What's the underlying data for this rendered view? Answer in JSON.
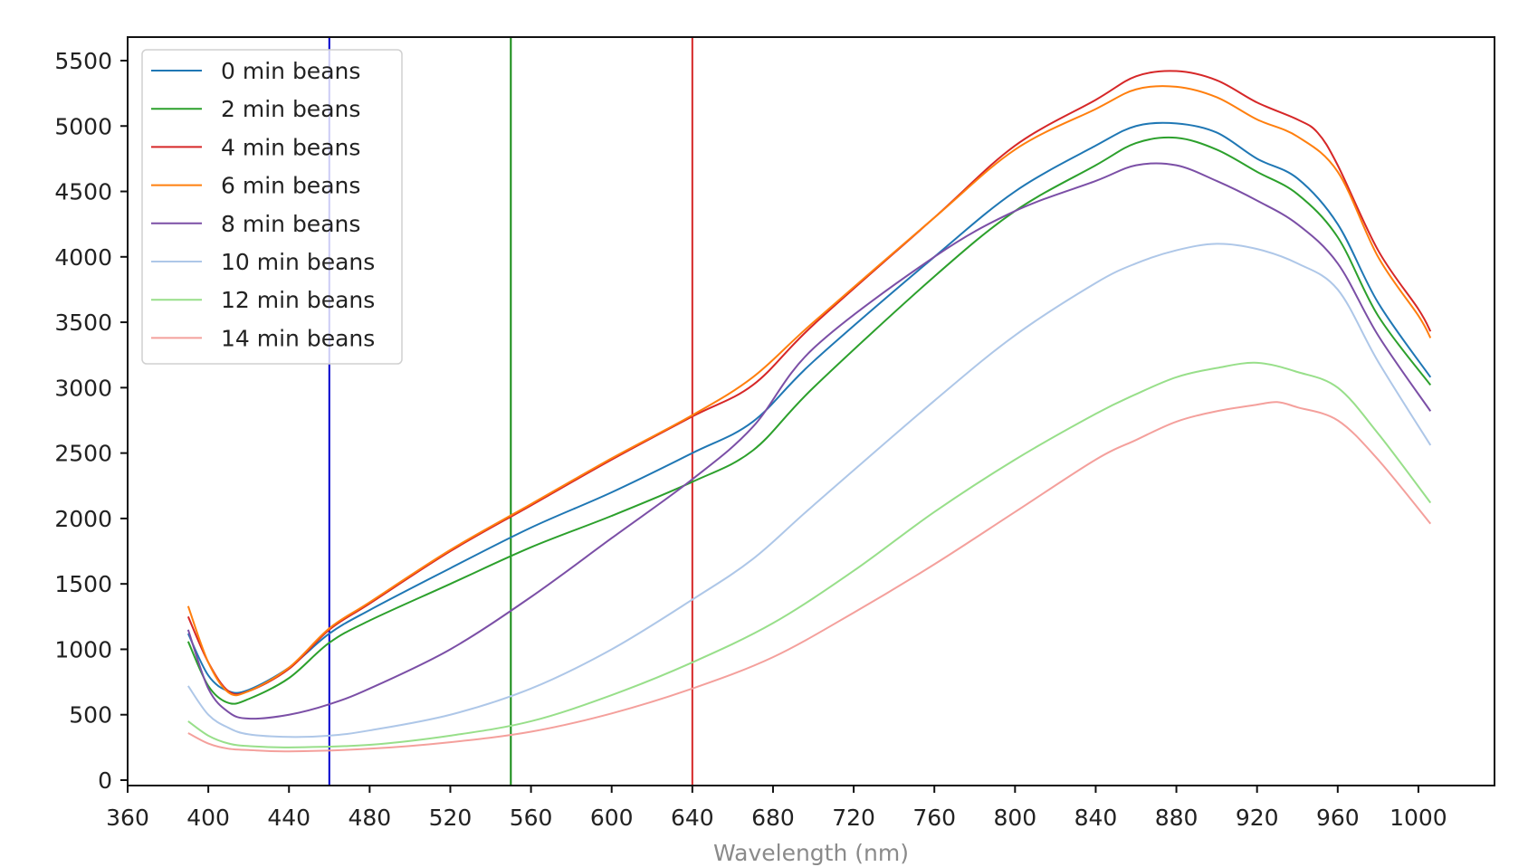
{
  "chart_data": {
    "type": "line",
    "title": "",
    "xlabel": "Wavelength (nm)",
    "ylabel": "",
    "xlim": [
      360,
      1040
    ],
    "ylim": [
      -30,
      5750
    ],
    "xticks": [
      360,
      400,
      440,
      480,
      520,
      560,
      600,
      640,
      680,
      720,
      760,
      800,
      840,
      880,
      920,
      960,
      1000
    ],
    "yticks": [
      0,
      500,
      1000,
      1500,
      2000,
      2500,
      3000,
      3500,
      4000,
      4500,
      5000,
      5500
    ],
    "grid": false,
    "legend_position": "upper left",
    "vertical_lines": [
      {
        "x": 460,
        "color": "#0000cc"
      },
      {
        "x": 550,
        "color": "#138a13"
      },
      {
        "x": 640,
        "color": "#d62728"
      }
    ],
    "series": [
      {
        "name": "0 min beans",
        "color": "#1f77b4",
        "width": 2,
        "x": [
          390,
          400,
          410,
          420,
          440,
          460,
          480,
          520,
          560,
          600,
          640,
          670,
          700,
          760,
          800,
          840,
          860,
          880,
          900,
          920,
          940,
          960,
          980,
          1006
        ],
        "y": [
          1120,
          800,
          680,
          690,
          860,
          1120,
          1300,
          1620,
          1930,
          2200,
          2500,
          2740,
          3200,
          4000,
          4500,
          4850,
          5000,
          5020,
          4950,
          4750,
          4600,
          4250,
          3650,
          3080
        ]
      },
      {
        "name": "2 min beans",
        "color": "#2ca02c",
        "width": 2,
        "x": [
          390,
          400,
          410,
          420,
          440,
          460,
          480,
          520,
          560,
          600,
          640,
          670,
          700,
          760,
          800,
          840,
          860,
          880,
          900,
          920,
          940,
          960,
          980,
          1006
        ],
        "y": [
          1060,
          720,
          590,
          620,
          780,
          1050,
          1220,
          1500,
          1780,
          2020,
          2280,
          2520,
          3000,
          3850,
          4350,
          4700,
          4870,
          4910,
          4820,
          4650,
          4480,
          4150,
          3550,
          3020
        ]
      },
      {
        "name": "4 min beans",
        "color": "#d62728",
        "width": 2,
        "x": [
          390,
          400,
          410,
          420,
          440,
          460,
          480,
          520,
          560,
          600,
          640,
          670,
          700,
          760,
          800,
          840,
          860,
          880,
          900,
          920,
          940,
          950,
          960,
          980,
          1000,
          1006
        ],
        "y": [
          1250,
          900,
          680,
          680,
          850,
          1150,
          1350,
          1750,
          2100,
          2450,
          2780,
          3020,
          3480,
          4300,
          4850,
          5200,
          5380,
          5420,
          5350,
          5180,
          5050,
          4950,
          4700,
          4050,
          3600,
          3430
        ]
      },
      {
        "name": "6 min beans",
        "color": "#ff7f0e",
        "width": 2,
        "x": [
          390,
          400,
          410,
          420,
          440,
          460,
          480,
          520,
          560,
          600,
          640,
          670,
          700,
          760,
          800,
          840,
          860,
          880,
          900,
          920,
          940,
          960,
          980,
          1000,
          1006
        ],
        "y": [
          1330,
          900,
          670,
          680,
          860,
          1160,
          1360,
          1760,
          2110,
          2460,
          2790,
          3080,
          3500,
          4300,
          4820,
          5130,
          5280,
          5300,
          5220,
          5050,
          4920,
          4650,
          4000,
          3550,
          3380
        ]
      },
      {
        "name": "8 min beans",
        "color": "#7b4fa6",
        "width": 2,
        "x": [
          390,
          400,
          410,
          420,
          440,
          460,
          480,
          520,
          560,
          600,
          640,
          670,
          700,
          760,
          800,
          840,
          860,
          880,
          900,
          920,
          940,
          960,
          980,
          1006
        ],
        "y": [
          1150,
          700,
          520,
          470,
          500,
          580,
          700,
          1000,
          1400,
          1850,
          2300,
          2700,
          3300,
          4000,
          4350,
          4580,
          4700,
          4700,
          4580,
          4430,
          4250,
          3950,
          3400,
          2820
        ]
      },
      {
        "name": "10 min beans",
        "color": "#aec7e8",
        "width": 2,
        "x": [
          390,
          400,
          410,
          420,
          440,
          460,
          480,
          520,
          560,
          600,
          640,
          670,
          700,
          760,
          800,
          840,
          860,
          880,
          900,
          920,
          940,
          960,
          980,
          1006
        ],
        "y": [
          720,
          500,
          400,
          350,
          330,
          340,
          380,
          500,
          700,
          1000,
          1380,
          1690,
          2100,
          2900,
          3400,
          3800,
          3950,
          4050,
          4100,
          4060,
          3950,
          3750,
          3200,
          2560
        ]
      },
      {
        "name": "12 min beans",
        "color": "#98df8a",
        "width": 2,
        "x": [
          390,
          400,
          410,
          420,
          440,
          480,
          520,
          560,
          600,
          640,
          680,
          720,
          760,
          800,
          840,
          860,
          880,
          900,
          920,
          940,
          960,
          980,
          1006
        ],
        "y": [
          450,
          340,
          280,
          260,
          250,
          270,
          340,
          450,
          650,
          900,
          1200,
          1600,
          2050,
          2450,
          2800,
          2950,
          3080,
          3150,
          3190,
          3120,
          3000,
          2650,
          2120
        ]
      },
      {
        "name": "14 min beans",
        "color": "#f4a09c",
        "width": 2,
        "x": [
          390,
          400,
          410,
          420,
          440,
          480,
          520,
          560,
          600,
          640,
          680,
          720,
          760,
          800,
          840,
          860,
          880,
          900,
          920,
          930,
          940,
          960,
          980,
          1006
        ],
        "y": [
          360,
          280,
          240,
          230,
          220,
          240,
          290,
          370,
          510,
          700,
          940,
          1280,
          1650,
          2050,
          2450,
          2600,
          2740,
          2820,
          2870,
          2890,
          2850,
          2750,
          2450,
          1960
        ]
      }
    ]
  }
}
